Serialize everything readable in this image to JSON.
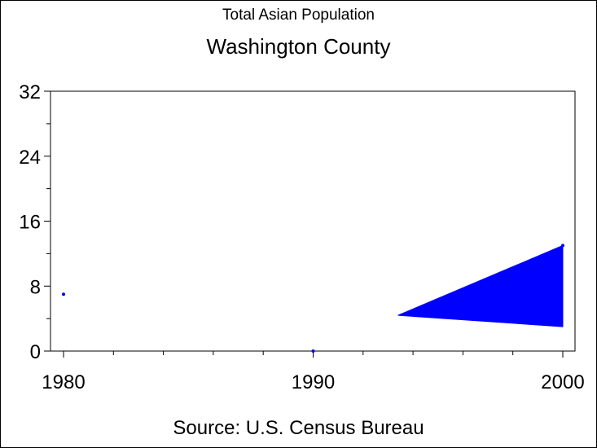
{
  "chart_data": {
    "type": "line",
    "title": "Total Asian Population",
    "subtitle": "Washington County",
    "source": "Source: U.S. Census Bureau",
    "xlabel": "",
    "ylabel": "",
    "xlim": [
      1980,
      2000
    ],
    "ylim": [
      0,
      32
    ],
    "x_ticks": [
      "1980",
      "1990",
      "2000"
    ],
    "y_ticks": [
      "0",
      "8",
      "16",
      "24",
      "32"
    ],
    "series": [
      {
        "points": [
          {
            "x": 1980,
            "y": 7
          },
          {
            "x": 1990,
            "y": 0
          },
          {
            "x": 2000,
            "y": 13
          }
        ]
      }
    ],
    "shaded_region": {
      "vertices": [
        {
          "x": 1993.4,
          "y": 4.4
        },
        {
          "x": 2000,
          "y": 13
        },
        {
          "x": 2000,
          "y": 3
        }
      ]
    },
    "grid": false,
    "colors": {
      "series": "#0000ff",
      "axis": "#000000"
    }
  }
}
